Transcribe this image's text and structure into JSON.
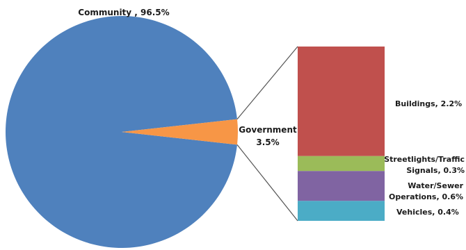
{
  "chart_data": [
    {
      "type": "pie",
      "categories": [
        "Community",
        "Government"
      ],
      "values": [
        96.5,
        3.5
      ],
      "colors": [
        "#4f81bd",
        "#f79646"
      ],
      "labels": {
        "community": {
          "name": "Community",
          "value": "96.5%"
        },
        "government": {
          "name": "Government",
          "value": "3.5%"
        }
      }
    },
    {
      "type": "bar",
      "stacked": true,
      "categories": [
        "Buildings",
        "Streetlights/Traffic Signals",
        "Water/Sewer Operations",
        "Vehicles"
      ],
      "values": [
        2.2,
        0.3,
        0.6,
        0.4
      ],
      "colors": [
        "#c0504d",
        "#9bbb59",
        "#8064a2",
        "#4bacc6"
      ],
      "labels": {
        "buildings": "Buildings, 2.2%",
        "streetlights_line1": "Streetlights/Traffic",
        "streetlights_line2": "Signals, 0.3%",
        "water_line1": "Water/Sewer",
        "water_line2": "Operations, 0.6%",
        "vehicles": "Vehicles, 0.4%"
      }
    }
  ]
}
